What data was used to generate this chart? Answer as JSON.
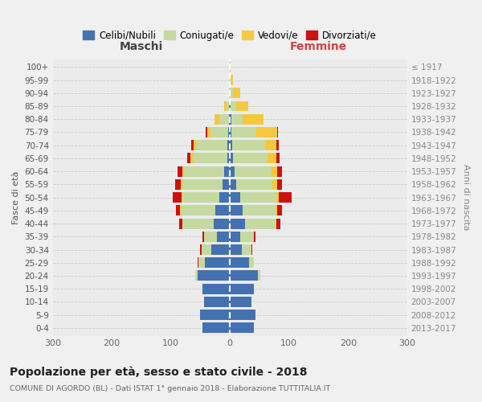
{
  "age_groups": [
    "0-4",
    "5-9",
    "10-14",
    "15-19",
    "20-24",
    "25-29",
    "30-34",
    "35-39",
    "40-44",
    "45-49",
    "50-54",
    "55-59",
    "60-64",
    "65-69",
    "70-74",
    "75-79",
    "80-84",
    "85-89",
    "90-94",
    "95-99",
    "100+"
  ],
  "birth_years": [
    "2013-2017",
    "2008-2012",
    "2003-2007",
    "1998-2002",
    "1993-1997",
    "1988-1992",
    "1983-1987",
    "1978-1982",
    "1973-1977",
    "1968-1972",
    "1963-1967",
    "1958-1962",
    "1953-1957",
    "1948-1952",
    "1943-1947",
    "1938-1942",
    "1933-1937",
    "1928-1932",
    "1923-1927",
    "1918-1922",
    "≤ 1917"
  ],
  "colors": {
    "celibi": "#4472b0",
    "coniugati": "#c5d9a0",
    "vedovi": "#f5c840",
    "divorziati": "#cc1111"
  },
  "maschi": {
    "celibi": [
      46,
      50,
      44,
      47,
      55,
      43,
      32,
      22,
      28,
      25,
      18,
      13,
      10,
      5,
      5,
      3,
      2,
      1,
      0,
      0,
      0
    ],
    "coniugati": [
      0,
      0,
      0,
      0,
      4,
      10,
      16,
      22,
      52,
      58,
      62,
      68,
      68,
      58,
      52,
      30,
      16,
      5,
      1,
      0,
      0
    ],
    "vedovi": [
      0,
      0,
      0,
      0,
      0,
      0,
      0,
      0,
      1,
      1,
      2,
      2,
      3,
      4,
      5,
      5,
      8,
      4,
      1,
      0,
      0
    ],
    "divorziati": [
      0,
      0,
      0,
      0,
      0,
      1,
      2,
      2,
      5,
      8,
      15,
      10,
      8,
      5,
      4,
      3,
      0,
      0,
      0,
      0,
      0
    ]
  },
  "femmine": {
    "celibi": [
      40,
      43,
      36,
      40,
      48,
      32,
      20,
      18,
      25,
      22,
      18,
      10,
      8,
      5,
      4,
      3,
      2,
      1,
      0,
      0,
      0
    ],
    "coniugati": [
      0,
      0,
      0,
      0,
      4,
      8,
      16,
      22,
      52,
      55,
      60,
      62,
      62,
      58,
      55,
      42,
      20,
      10,
      5,
      2,
      0
    ],
    "vedovi": [
      0,
      0,
      0,
      0,
      0,
      0,
      0,
      0,
      2,
      3,
      5,
      8,
      10,
      15,
      20,
      35,
      35,
      20,
      12,
      3,
      1
    ],
    "divorziati": [
      0,
      0,
      0,
      0,
      0,
      1,
      2,
      3,
      6,
      8,
      22,
      8,
      8,
      6,
      4,
      2,
      0,
      0,
      0,
      0,
      0
    ]
  },
  "title": "Popolazione per età, sesso e stato civile - 2018",
  "subtitle": "COMUNE DI AGORDO (BL) - Dati ISTAT 1° gennaio 2018 - Elaborazione TUTTITALIA.IT",
  "xlabel_left": "Maschi",
  "xlabel_right": "Femmine",
  "ylabel_left": "Fasce di età",
  "ylabel_right": "Anni di nascita",
  "xlim": 300,
  "legend_labels": [
    "Celibi/Nubili",
    "Coniugati/e",
    "Vedovi/e",
    "Divorziati/e"
  ],
  "bg_color": "#f0f0f0",
  "plot_bg": "#ebebeb"
}
